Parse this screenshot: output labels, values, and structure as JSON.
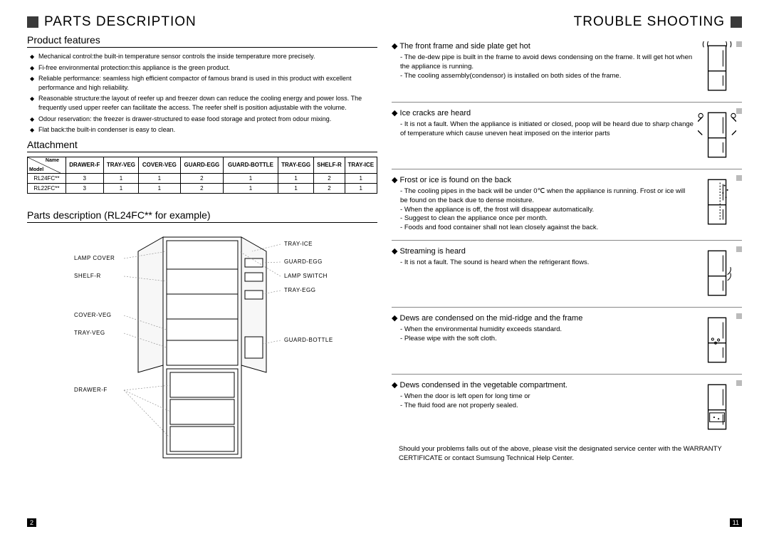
{
  "left": {
    "title": "PARTS DESCRIPTION",
    "features_heading": "Product features",
    "features": [
      "Mechanical control:the built-in temperature sensor controls the inside temperature more precisely.",
      "Fi-free environmental protection:this appliance is the green product.",
      "Reliable performance: seamless high efficient compactor of famous brand is used in this product with excellent performance and high reliability.",
      "Reasonable structure:the layout of reefer up and freezer down can reduce the cooling energy and power loss. The frequently used upper reefer can facilitate the access. The reefer shelf is position adjustable with the volume.",
      "Odour reservation: the freezer is drawer-structured to ease food storage and protect from odour mixing.",
      "Flat back:the built-in condenser is easy to clean."
    ],
    "attachment_heading": "Attachment",
    "table": {
      "corner_name": "Name",
      "corner_model": "Model",
      "columns": [
        "DRAWER-F",
        "TRAY-VEG",
        "COVER-VEG",
        "GUARD-EGG",
        "GUARD-BOTTLE",
        "TRAY-EGG",
        "SHELF-R",
        "TRAY-ICE"
      ],
      "rows": [
        {
          "model": "RL24FC**",
          "vals": [
            3,
            1,
            1,
            2,
            1,
            1,
            2,
            1
          ]
        },
        {
          "model": "RL22FC**",
          "vals": [
            3,
            1,
            1,
            2,
            1,
            1,
            2,
            1
          ]
        }
      ]
    },
    "diagram_heading": "Parts description (RL24FC** for example)",
    "labels_left": [
      "LAMP COVER",
      "SHELF-R",
      "COVER-VEG",
      "TRAY-VEG",
      "DRAWER-F"
    ],
    "labels_right": [
      "TRAY-ICE",
      "GUARD-EGG",
      "LAMP SWITCH",
      "TRAY-EGG",
      "GUARD-BOTTLE"
    ],
    "page": "2"
  },
  "right": {
    "title": "TROUBLE SHOOTING",
    "items": [
      {
        "head": "The front frame and side plate get hot",
        "subs": [
          "The de-dew pipe is built in the frame to avoid dews condensing on the frame. It will get hot when the appliance is running.",
          "The cooling assembly(condensor) is installed on both sides of the frame."
        ],
        "icon": "hot"
      },
      {
        "head": "Ice cracks are heard",
        "subs": [
          "It is not a fault. When the appliance is initiated or closed, poop will be heard due to sharp change of temperature which cause uneven heat imposed on the interior parts"
        ],
        "icon": "crack"
      },
      {
        "head": "Frost or ice is found on the back",
        "subs": [
          "The cooling pipes in the back will be under 0℃ when the appliance is running. Frost or ice will be found on the back due to dense moisture.",
          "When the appliance is off, the frost will disappear automatically.",
          "Suggest to clean the appliance once per month.",
          "Foods and food container shall not lean closely against the back."
        ],
        "icon": "frost"
      },
      {
        "head": "Streaming is heard",
        "subs": [
          "It is not a fault. The sound is heard when the refrigerant flows."
        ],
        "icon": "stream"
      },
      {
        "head": "Dews are condensed on the mid-ridge and the frame",
        "subs": [
          "When the environmental  humidity exceeds standard.",
          "Please wipe with the soft cloth."
        ],
        "icon": "dew"
      },
      {
        "head": "Dews condensed in the vegetable compartment.",
        "subs": [
          "When the door is left open for long time or",
          "The fluid food are not properly sealed."
        ],
        "icon": "veg"
      }
    ],
    "footer": "Should your problems falls out of the above, please visit the designated service center with the WARRANTY CERTIFICATE or contact Sumsung Technical Help Center.",
    "page": "11"
  },
  "colors": {
    "square": "#3a3a3a",
    "sep": "#bbbbbb"
  }
}
